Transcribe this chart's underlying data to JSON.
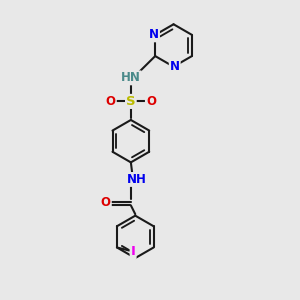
{
  "bg_color": "#e8e8e8",
  "bond_color": "#1a1a1a",
  "bond_width": 1.5,
  "atom_colors": {
    "N": "#0000ee",
    "O": "#dd0000",
    "S": "#bbbb00",
    "I": "#ee00ee",
    "H": "#4a8a8a",
    "C": "#1a1a1a"
  },
  "font_size": 8.5
}
